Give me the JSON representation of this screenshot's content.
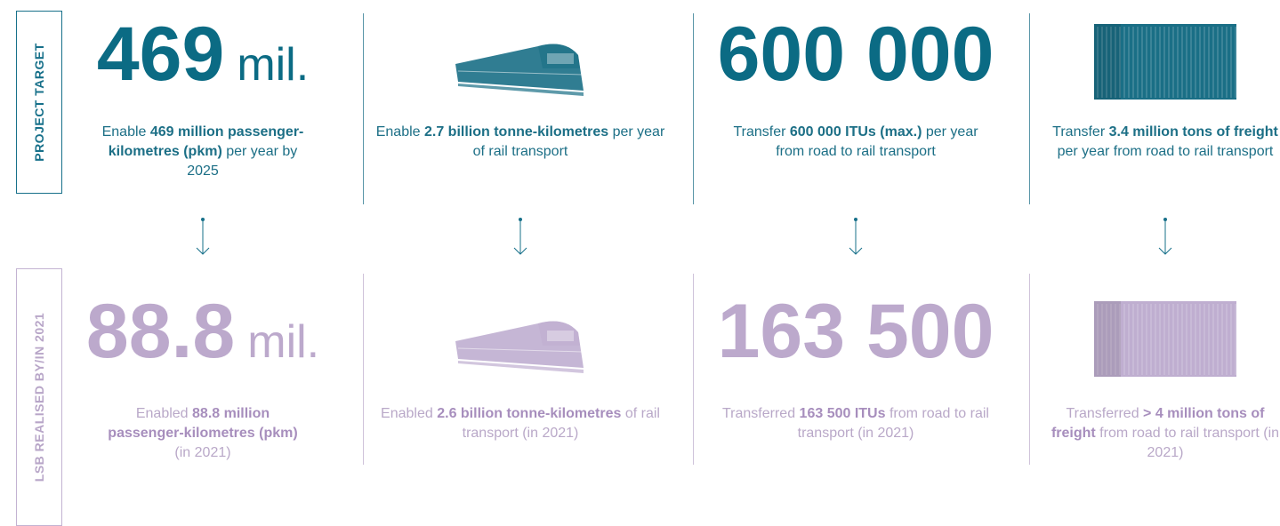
{
  "row_labels": [
    "PROJECT TARGET",
    "LSB REALISED BY/IN 2021"
  ],
  "target": [
    {
      "number": "469",
      "unit": "mil.",
      "description": [
        {
          "text": "Enable ",
          "bold": false
        },
        {
          "text": "469 million passenger-kilometres (pkm)",
          "bold": true
        },
        {
          "text": " per year by 2025",
          "bold": false
        }
      ]
    },
    {
      "image": "train",
      "description": [
        {
          "text": "Enable ",
          "bold": false
        },
        {
          "text": "2.7 billion tonne-kilometres",
          "bold": true
        },
        {
          "text": " per year of rail transport",
          "bold": false
        }
      ]
    },
    {
      "number": "600 000",
      "description": [
        {
          "text": "Transfer ",
          "bold": false
        },
        {
          "text": "600 000 ITUs (max.)",
          "bold": true
        },
        {
          "text": " per year from road to rail transport",
          "bold": false
        }
      ]
    },
    {
      "image": "container",
      "description": [
        {
          "text": "Transfer ",
          "bold": false
        },
        {
          "text": "3.4 million tons of freight",
          "bold": true
        },
        {
          "text": " per year from road to rail transport",
          "bold": false
        }
      ]
    }
  ],
  "realised": [
    {
      "number": "88.8",
      "unit": "mil.",
      "description": [
        {
          "text": "Enabled ",
          "bold": false
        },
        {
          "text": "88.8 million passenger-kilometres (pkm)",
          "bold": true
        },
        {
          "text": " (in 2021)",
          "bold": false
        }
      ]
    },
    {
      "image": "train",
      "description": [
        {
          "text": "Enabled ",
          "bold": false
        },
        {
          "text": "2.6 billion tonne-kilometres",
          "bold": true
        },
        {
          "text": " of rail transport (in 2021)",
          "bold": false
        }
      ]
    },
    {
      "number": "163 500",
      "description": [
        {
          "text": "Transferred ",
          "bold": false
        },
        {
          "text": "163 500 ITUs",
          "bold": true
        },
        {
          "text": " from road to rail transport (in 2021)",
          "bold": false
        }
      ]
    },
    {
      "image": "container",
      "description": [
        {
          "text": "Transferred ",
          "bold": false
        },
        {
          "text": "> 4 million tons of freight",
          "bold": true
        },
        {
          "text": " from road to rail transport (in 2021)",
          "bold": false
        }
      ]
    }
  ]
}
